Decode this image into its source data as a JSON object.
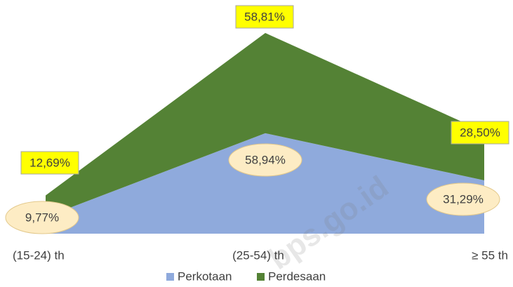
{
  "chart_data": {
    "type": "stacked-area",
    "categories": [
      "(15-24) th",
      "(25-54) th",
      "≥ 55 th"
    ],
    "series": [
      {
        "name": "Perkotaan",
        "color": "#8faadc",
        "values": [
          9.77,
          58.94,
          31.29
        ],
        "value_labels": [
          "9,77%",
          "58,94%",
          "31,29%"
        ]
      },
      {
        "name": "Perdesaan",
        "color": "#548235",
        "values": [
          12.69,
          58.81,
          28.5
        ],
        "value_labels": [
          "12,69%",
          "58,81%",
          "28,50%"
        ]
      }
    ],
    "watermark": "bps.go.id"
  }
}
